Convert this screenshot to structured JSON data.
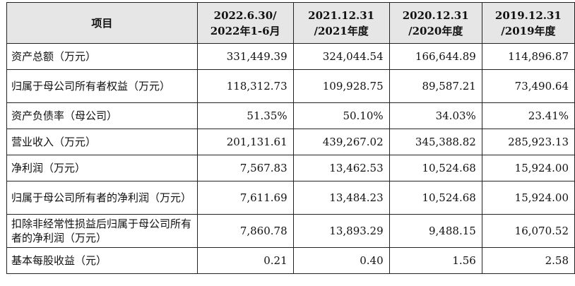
{
  "header": {
    "item": "项目",
    "periods": [
      {
        "line1": "2022.6.30/",
        "line2": "2022年1-6月"
      },
      {
        "line1": "2021.12.31",
        "line2": "/2021年度"
      },
      {
        "line1": "2020.12.31",
        "line2": "/2020年度"
      },
      {
        "line1": "2019.12.31",
        "line2": "/2019年度"
      }
    ]
  },
  "rows": [
    {
      "label": "资产总额（万元）",
      "values": [
        "331,449.39",
        "324,044.54",
        "166,644.89",
        "114,896.87"
      ]
    },
    {
      "label": "归属于母公司所有者权益（万元）",
      "values": [
        "118,312.73",
        "109,928.75",
        "89,587.21",
        "73,490.64"
      ]
    },
    {
      "label": "资产负债率（母公司）",
      "values": [
        "51.35%",
        "50.10%",
        "34.03%",
        "23.41%"
      ]
    },
    {
      "label": "营业收入（万元）",
      "values": [
        "201,131.61",
        "439,267.02",
        "345,388.82",
        "285,923.13"
      ]
    },
    {
      "label": "净利润（万元）",
      "values": [
        "7,567.83",
        "13,462.53",
        "10,524.68",
        "15,924.00"
      ]
    },
    {
      "label": "归属于母公司所有者的净利润（万元）",
      "values": [
        "7,611.69",
        "13,484.23",
        "10,524.68",
        "15,924.00"
      ]
    },
    {
      "label": "扣除非经常性损益后归属于母公司所有者的净利润（万元）",
      "values": [
        "7,860.78",
        "13,893.29",
        "9,488.15",
        "16,070.52"
      ]
    },
    {
      "label": "基本每股收益（元）",
      "values": [
        "0.21",
        "0.40",
        "1.56",
        "2.58"
      ]
    }
  ]
}
